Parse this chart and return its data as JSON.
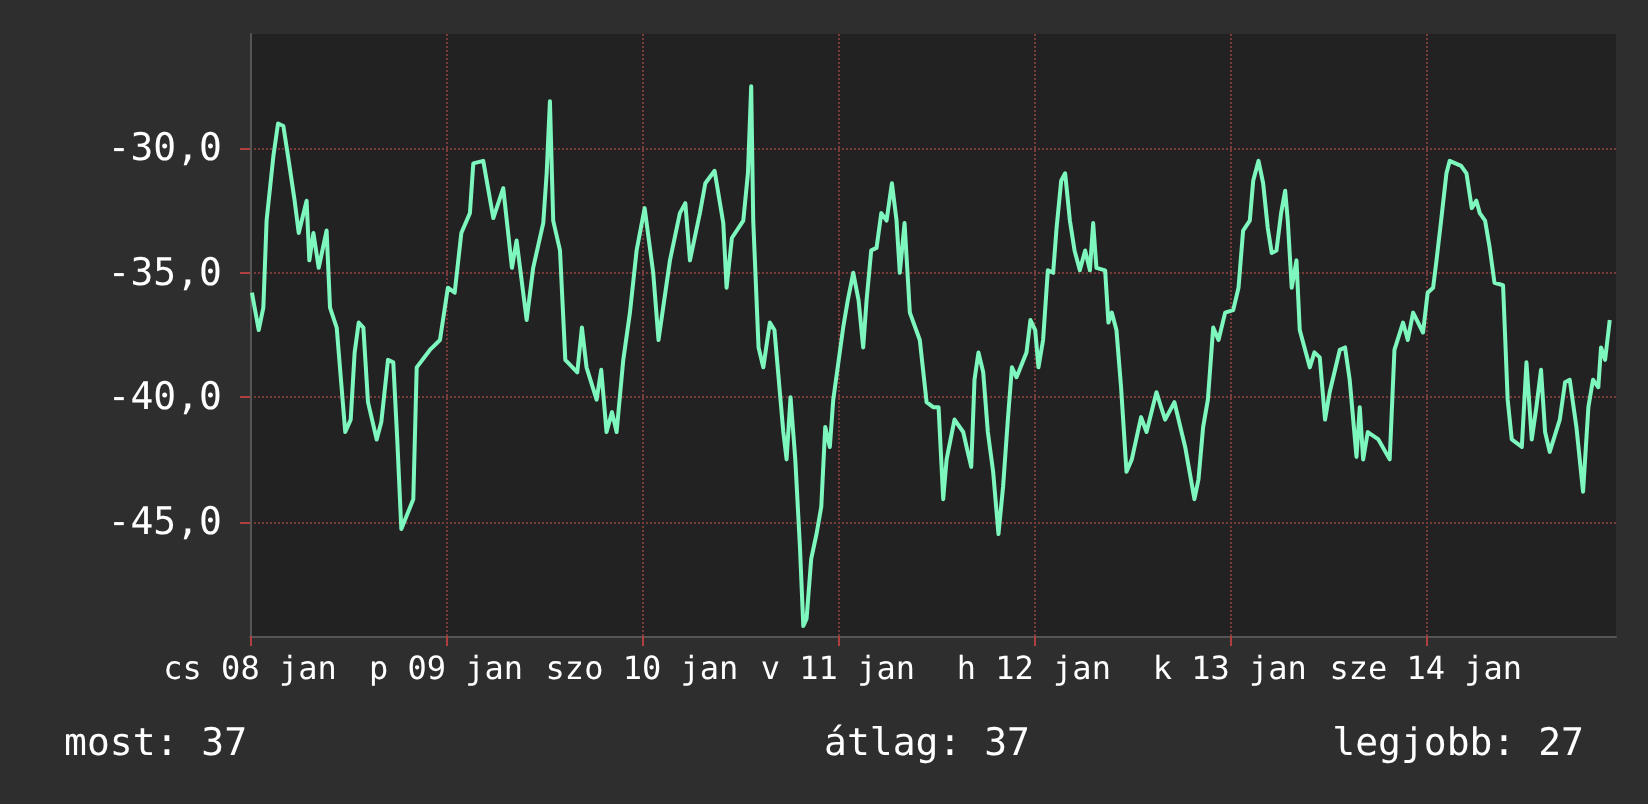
{
  "chart_data": {
    "type": "line",
    "color": "#7df7be",
    "marker": "none",
    "line_style": "solid",
    "grid": true,
    "xlim": [
      "--01-08T00:00",
      "--01-14T23:18"
    ],
    "ylim": [
      -49.6,
      -25.4
    ],
    "xticks": [
      {
        "value": "--01-08",
        "label": "cs 08 jan"
      },
      {
        "value": "--01-09",
        "label": "p 09 jan"
      },
      {
        "value": "--01-10",
        "label": "szo 10 jan"
      },
      {
        "value": "--01-11",
        "label": "v 11 jan"
      },
      {
        "value": "--01-12",
        "label": "h 12 jan"
      },
      {
        "value": "--01-13",
        "label": "k 13 jan"
      },
      {
        "value": "--01-14",
        "label": "sze 14 jan"
      }
    ],
    "yticks": [
      {
        "value": -45,
        "label": "-45,0"
      },
      {
        "value": -40,
        "label": "-40,0"
      },
      {
        "value": -35,
        "label": "-35,0"
      },
      {
        "value": -30,
        "label": "-30,0"
      }
    ],
    "annotations": [
      "most: 37",
      "átlag: 37",
      "legjobb: 27"
    ],
    "x": [
      "--01-08T00:14",
      "--01-08T01:04",
      "--01-08T01:38",
      "--01-08T02:02",
      "--01-08T02:52",
      "--01-08T03:26",
      "--01-08T04:05",
      "--01-08T04:39",
      "--01-08T05:28",
      "--01-08T05:58",
      "--01-08T06:56",
      "--01-08T07:16",
      "--01-08T07:46",
      "--01-08T08:25",
      "--01-08T09:23",
      "--01-08T09:48",
      "--01-08T10:37",
      "--01-08T11:40",
      "--01-08T12:20",
      "--01-08T12:49",
      "--01-08T13:19",
      "--01-08T13:53",
      "--01-08T14:27",
      "--01-08T15:31",
      "--01-08T16:05",
      "--01-08T16:54",
      "--01-08T17:33",
      "--01-08T18:02",
      "--01-08T18:32",
      "--01-08T20:00",
      "--01-08T20:25",
      "--01-08T22:02",
      "--01-08T23:16",
      "--01-09T00:14",
      "--01-09T01:04",
      "--01-09T01:53",
      "--01-09T02:56",
      "--01-09T03:21",
      "--01-09T04:34",
      "--01-09T05:48",
      "--01-09T07:01",
      "--01-09T08:05",
      "--01-09T08:39",
      "--01-09T09:53",
      "--01-09T10:41",
      "--01-09T11:55",
      "--01-09T12:20",
      "--01-09T12:44",
      "--01-09T13:08",
      "--01-09T13:58",
      "--01-09T14:37",
      "--01-09T16:05",
      "--01-09T16:39",
      "--01-09T17:13",
      "--01-09T18:27",
      "--01-09T19:01",
      "--01-09T19:40",
      "--01-09T20:20",
      "--01-09T20:54",
      "--01-09T21:43",
      "--01-09T22:32",
      "--01-09T23:21",
      "--01-10T00:20",
      "--01-10T01:23",
      "--01-10T02:02",
      "--01-10T03:26",
      "--01-10T04:39",
      "--01-10T05:19",
      "--01-10T05:53",
      "--01-10T07:06",
      "--01-10T07:46",
      "--01-10T08:54",
      "--01-10T09:58",
      "--01-10T10:22",
      "--01-10T11:01",
      "--01-10T12:25",
      "--01-10T12:59",
      "--01-10T13:23",
      "--01-10T13:38",
      "--01-10T14:17",
      "--01-10T14:52",
      "--01-10T15:40",
      "--01-10T16:14",
      "--01-10T17:19",
      "--01-10T17:43",
      "--01-10T18:12",
      "--01-10T18:47",
      "--01-10T19:21",
      "--01-10T19:46",
      "--01-10T20:10",
      "--01-10T20:44",
      "--01-10T21:23",
      "--01-10T21:58",
      "--01-10T22:27",
      "--01-10T23:01",
      "--01-10T23:26",
      "--01-11T00:39",
      "--01-11T01:13",
      "--01-11T01:53",
      "--01-11T02:32",
      "--01-11T03:06",
      "--01-11T03:31",
      "--01-11T04:05",
      "--01-11T04:44",
      "--01-11T05:19",
      "--01-11T05:58",
      "--01-11T06:37",
      "--01-11T07:11",
      "--01-11T07:35",
      "--01-11T08:10",
      "--01-11T08:49",
      "--01-11T10:02",
      "--01-11T10:52",
      "--01-11T11:40",
      "--01-11T12:20",
      "--01-11T12:54",
      "--01-11T13:19",
      "--01-11T14:17",
      "--01-11T15:21",
      "--01-11T15:46",
      "--01-11T16:20",
      "--01-11T16:44",
      "--01-11T17:13",
      "--01-11T17:48",
      "--01-11T18:22",
      "--01-11T19:01",
      "--01-11T19:40",
      "--01-11T20:14",
      "--01-11T20:49",
      "--01-11T21:19",
      "--01-11T21:53",
      "--01-11T23:06",
      "--01-11T23:35",
      "--01-12T00:10",
      "--01-12T00:34",
      "--01-12T01:08",
      "--01-12T01:43",
      "--01-12T02:22",
      "--01-12T02:47",
      "--01-12T03:21",
      "--01-12T03:50",
      "--01-12T04:25",
      "--01-12T04:59",
      "--01-12T05:38",
      "--01-12T06:17",
      "--01-12T06:52",
      "--01-12T07:16",
      "--01-12T07:40",
      "--01-12T08:44",
      "--01-12T09:08",
      "--01-12T09:33",
      "--01-12T10:07",
      "--01-12T10:41",
      "--01-12T11:21",
      "--01-12T12:00",
      "--01-12T13:08",
      "--01-12T13:48",
      "--01-12T15:01",
      "--01-12T15:35",
      "--01-12T16:05",
      "--01-12T17:13",
      "--01-12T18:32",
      "--01-12T19:40",
      "--01-12T20:10",
      "--01-12T20:44",
      "--01-12T21:19",
      "--01-12T21:58",
      "--01-12T22:37",
      "--01-12T23:26",
      "--01-13T00:25",
      "--01-13T01:04",
      "--01-13T01:38",
      "--01-13T02:27",
      "--01-13T02:52",
      "--01-13T03:31",
      "--01-13T04:05",
      "--01-13T04:39",
      "--01-13T05:08",
      "--01-13T05:43",
      "--01-13T06:17",
      "--01-13T06:47",
      "--01-13T07:06",
      "--01-13T07:35",
      "--01-13T08:10",
      "--01-13T08:34",
      "--01-13T09:48",
      "--01-13T10:22",
      "--01-13T11:01",
      "--01-13T11:40",
      "--01-13T12:14",
      "--01-13T13:28",
      "--01-13T14:07",
      "--01-13T14:41",
      "--01-13T15:31",
      "--01-13T15:55",
      "--01-13T16:20",
      "--01-13T16:54",
      "--01-13T18:12",
      "--01-13T19:35",
      "--01-13T20:10",
      "--01-13T21:13",
      "--01-13T21:48",
      "--01-13T22:27",
      "--01-13T23:40",
      "--01-14T00:14",
      "--01-14T00:54",
      "--01-14T01:19",
      "--01-14T01:53",
      "--01-14T02:32",
      "--01-14T02:56",
      "--01-14T04:20",
      "--01-14T04:59",
      "--01-14T05:38",
      "--01-14T06:12",
      "--01-14T06:37",
      "--01-14T07:16",
      "--01-14T07:50",
      "--01-14T08:25",
      "--01-14T09:28",
      "--01-14T10:02",
      "--01-14T10:32",
      "--01-14T11:46",
      "--01-14T12:20",
      "--01-14T12:59",
      "--01-14T13:33",
      "--01-14T14:07",
      "--01-14T14:37",
      "--01-14T15:11",
      "--01-14T16:25",
      "--01-14T17:04",
      "--01-14T17:38",
      "--01-14T18:27",
      "--01-14T19:16",
      "--01-14T19:55",
      "--01-14T20:29",
      "--01-14T21:08",
      "--01-14T21:28",
      "--01-14T21:58",
      "--01-14T22:32"
    ],
    "values": [
      -35.8,
      -37.3,
      -36.4,
      -32.9,
      -30.3,
      -29.0,
      -29.1,
      -30.3,
      -32.1,
      -33.4,
      -32.1,
      -34.5,
      -33.4,
      -34.8,
      -33.3,
      -36.4,
      -37.2,
      -41.4,
      -40.9,
      -38.2,
      -37.0,
      -37.2,
      -40.2,
      -41.7,
      -41.0,
      -38.5,
      -38.6,
      -41.7,
      -45.3,
      -44.1,
      -38.8,
      -38.1,
      -37.7,
      -35.6,
      -35.8,
      -33.4,
      -32.6,
      -30.6,
      -30.5,
      -32.8,
      -31.6,
      -34.8,
      -33.7,
      -36.9,
      -34.8,
      -33.0,
      -31.0,
      -28.1,
      -32.9,
      -34.1,
      -38.5,
      -39.0,
      -37.2,
      -38.8,
      -40.1,
      -38.9,
      -41.4,
      -40.6,
      -41.4,
      -38.5,
      -36.6,
      -34.1,
      -32.4,
      -35.0,
      -37.7,
      -34.5,
      -32.6,
      -32.2,
      -34.5,
      -32.6,
      -31.4,
      -30.9,
      -33.0,
      -35.6,
      -33.6,
      -32.9,
      -31.0,
      -27.5,
      -32.9,
      -38.0,
      -38.8,
      -37.0,
      -37.3,
      -41.4,
      -42.5,
      -40.0,
      -42.5,
      -46.0,
      -49.2,
      -48.9,
      -46.5,
      -45.5,
      -44.4,
      -41.2,
      -42.0,
      -40.1,
      -37.2,
      -36.1,
      -35.0,
      -36.1,
      -38.0,
      -36.1,
      -34.1,
      -34.0,
      -32.6,
      -32.9,
      -31.4,
      -32.9,
      -35.0,
      -33.0,
      -36.6,
      -37.7,
      -40.2,
      -40.4,
      -40.4,
      -44.1,
      -42.5,
      -40.9,
      -41.4,
      -42.0,
      -42.8,
      -39.3,
      -38.2,
      -39.0,
      -41.4,
      -43.0,
      -45.5,
      -43.6,
      -40.9,
      -38.8,
      -39.2,
      -38.2,
      -36.9,
      -37.3,
      -38.8,
      -37.7,
      -34.9,
      -35.0,
      -33.2,
      -31.3,
      -31.0,
      -32.9,
      -34.1,
      -34.9,
      -34.1,
      -34.9,
      -33.0,
      -34.8,
      -34.9,
      -37.0,
      -36.6,
      -37.3,
      -39.6,
      -43.0,
      -42.5,
      -40.8,
      -41.4,
      -39.8,
      -40.4,
      -40.9,
      -40.2,
      -42.0,
      -44.1,
      -43.3,
      -41.2,
      -40.1,
      -37.2,
      -37.7,
      -36.6,
      -36.5,
      -35.6,
      -33.3,
      -32.9,
      -31.3,
      -30.5,
      -31.4,
      -33.2,
      -34.2,
      -34.1,
      -32.6,
      -31.7,
      -32.9,
      -35.6,
      -34.5,
      -37.3,
      -38.8,
      -38.2,
      -38.4,
      -40.9,
      -39.8,
      -38.1,
      -38.0,
      -39.3,
      -42.4,
      -40.4,
      -42.5,
      -41.4,
      -41.7,
      -42.5,
      -38.1,
      -37.0,
      -37.7,
      -36.6,
      -37.4,
      -35.8,
      -35.6,
      -34.5,
      -32.9,
      -31.0,
      -30.5,
      -30.7,
      -31.0,
      -32.4,
      -32.1,
      -32.6,
      -32.9,
      -34.0,
      -35.4,
      -35.5,
      -40.1,
      -41.7,
      -42.0,
      -38.6,
      -41.7,
      -40.4,
      -38.9,
      -41.4,
      -42.2,
      -40.9,
      -39.4,
      -39.3,
      -41.2,
      -43.8,
      -40.4,
      -39.3,
      -39.6,
      -38.0,
      -38.5,
      -36.9
    ]
  }
}
